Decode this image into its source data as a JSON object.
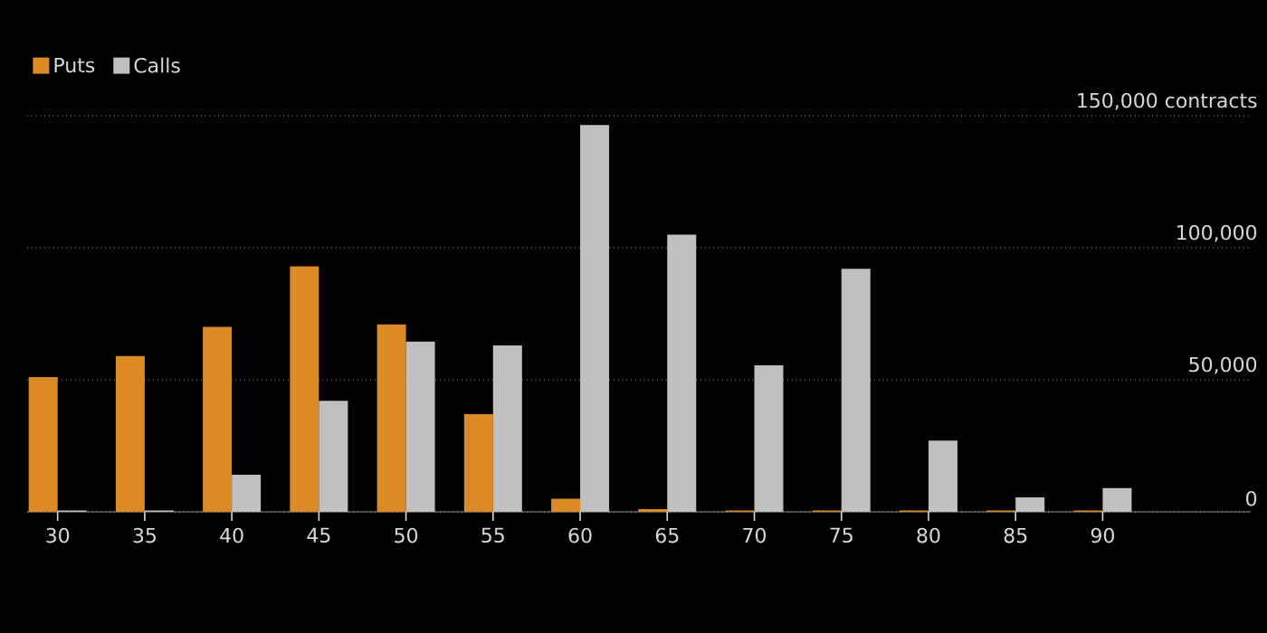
{
  "chart_data": {
    "type": "bar",
    "categories": [
      "30",
      "35",
      "40",
      "45",
      "50",
      "55",
      "60",
      "65",
      "70",
      "75",
      "80",
      "85",
      "90"
    ],
    "series": [
      {
        "name": "Puts",
        "color": "#dc8a26",
        "values": [
          51000,
          59000,
          70000,
          93000,
          71000,
          37000,
          5000,
          1000,
          500,
          500,
          500,
          500,
          500
        ]
      },
      {
        "name": "Calls",
        "color": "#c0c0c0",
        "values": [
          500,
          500,
          14000,
          42000,
          64500,
          63000,
          146500,
          105000,
          55500,
          92000,
          27000,
          5500,
          9000
        ]
      }
    ],
    "ylim": [
      0,
      150000
    ],
    "yticks": [
      0,
      {
        "value": 50000,
        "label": "50,000"
      },
      {
        "value": 100000,
        "label": "100,000"
      },
      {
        "value": 150000,
        "label": "150,000 contracts"
      }
    ],
    "grid": "y",
    "legend": "top left"
  }
}
